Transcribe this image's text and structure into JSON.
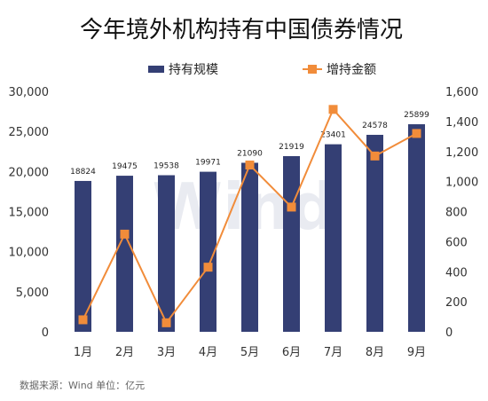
{
  "chart_data": {
    "type": "bar+line",
    "title": "今年境外机构持有中国债券情况",
    "categories": [
      "1月",
      "2月",
      "3月",
      "4月",
      "5月",
      "6月",
      "7月",
      "8月",
      "9月"
    ],
    "series": [
      {
        "name": "持有规模",
        "type": "bar",
        "axis": "left",
        "color": "#343f74",
        "values": [
          18824,
          19475,
          19538,
          19971,
          21090,
          21919,
          23401,
          24578,
          25899
        ]
      },
      {
        "name": "增持金额",
        "type": "line",
        "axis": "right",
        "color": "#f18c3a",
        "values": [
          80,
          650,
          60,
          430,
          1110,
          830,
          1480,
          1170,
          1320
        ]
      }
    ],
    "y_left": {
      "min": 0,
      "max": 30000,
      "ticks": [
        "0",
        "5,000",
        "10,000",
        "15,000",
        "20,000",
        "25,000",
        "30,000"
      ]
    },
    "y_right": {
      "min": 0,
      "max": 1600,
      "ticks": [
        "0",
        "200",
        "400",
        "600",
        "800",
        "1,000",
        "1,200",
        "1,400",
        "1,600"
      ]
    },
    "data_labels": [
      "18824",
      "19475",
      "19538",
      "19971",
      "21090",
      "21919",
      "23401",
      "24578",
      "25899"
    ],
    "legend_position": "top",
    "grid": false
  },
  "watermark": "Wind",
  "footer": {
    "source": "数据来源：Wind    单位：亿元"
  }
}
